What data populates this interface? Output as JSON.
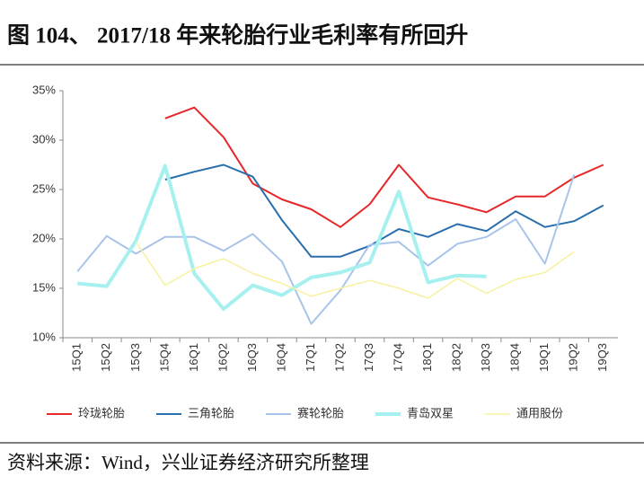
{
  "chart_data": {
    "type": "line",
    "title": "图 104、 2017/18 年来轮胎行业毛利率有所回升",
    "source": "资料来源：Wind，兴业证券经济研究所整理",
    "categories": [
      "15Q1",
      "15Q2",
      "15Q3",
      "15Q4",
      "16Q1",
      "16Q2",
      "16Q3",
      "16Q4",
      "17Q1",
      "17Q2",
      "17Q3",
      "17Q4",
      "18Q1",
      "18Q2",
      "18Q3",
      "18Q4",
      "19Q1",
      "19Q2",
      "19Q3"
    ],
    "series": [
      {
        "name": "玲珑轮胎",
        "color": "#e8272a",
        "width": 2,
        "values": [
          null,
          null,
          null,
          32.2,
          33.3,
          30.3,
          25.6,
          24.0,
          23.0,
          21.2,
          23.5,
          27.5,
          24.2,
          23.5,
          22.7,
          24.3,
          24.3,
          26.2,
          27.5
        ]
      },
      {
        "name": "三角轮胎",
        "color": "#2a6fad",
        "width": 2,
        "values": [
          null,
          null,
          null,
          26.0,
          26.8,
          27.5,
          26.3,
          21.9,
          18.2,
          18.2,
          19.3,
          21.0,
          20.2,
          21.5,
          20.8,
          22.8,
          21.2,
          21.8,
          23.4
        ]
      },
      {
        "name": "赛轮轮胎",
        "color": "#a9c4ea",
        "width": 2,
        "values": [
          16.7,
          20.3,
          18.5,
          20.2,
          20.2,
          18.8,
          20.5,
          17.7,
          11.4,
          14.8,
          19.4,
          19.7,
          17.3,
          19.5,
          20.2,
          22.0,
          17.5,
          26.5,
          null
        ]
      },
      {
        "name": "青岛双星",
        "color": "#a7f0f0",
        "width": 4,
        "values": [
          15.5,
          15.2,
          19.8,
          27.4,
          16.5,
          12.9,
          15.3,
          14.3,
          16.1,
          16.6,
          17.6,
          24.8,
          15.6,
          16.3,
          16.2,
          null,
          null,
          null,
          null
        ]
      },
      {
        "name": "通用股份",
        "color": "#f7f1a0",
        "width": 1.5,
        "values": [
          null,
          null,
          19.7,
          15.3,
          17.0,
          18.0,
          16.5,
          15.5,
          14.2,
          15.0,
          15.8,
          15.0,
          14.0,
          16.0,
          14.5,
          15.9,
          16.6,
          18.7,
          null
        ]
      }
    ],
    "ylim": [
      10,
      35
    ],
    "yticks": [
      {
        "value": 10,
        "label": "10%"
      },
      {
        "value": 15,
        "label": "15%"
      },
      {
        "value": 20,
        "label": "20%"
      },
      {
        "value": 25,
        "label": "25%"
      },
      {
        "value": 30,
        "label": "30%"
      },
      {
        "value": 35,
        "label": "35%"
      }
    ],
    "grid": false,
    "legend": "bottom"
  }
}
